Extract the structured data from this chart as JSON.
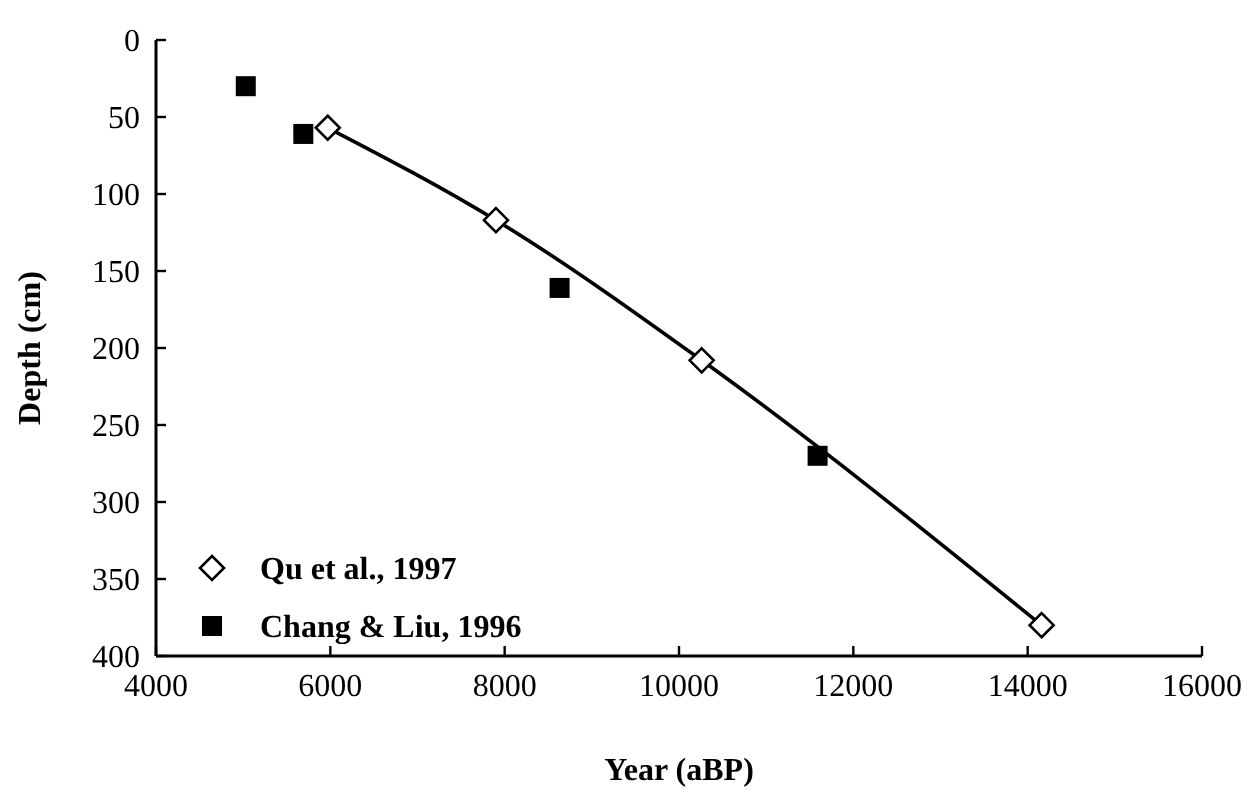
{
  "chart_data": {
    "type": "scatter",
    "xlabel": "Year (aBP)",
    "ylabel": "Depth (cm)",
    "xlim": [
      4000,
      16000
    ],
    "xticks": [
      4000,
      6000,
      8000,
      10000,
      12000,
      14000,
      16000
    ],
    "ylim": [
      400,
      0
    ],
    "yticks": [
      0,
      50,
      100,
      150,
      200,
      250,
      300,
      350,
      400
    ],
    "legend": "bottom left",
    "grid": false,
    "series": [
      {
        "type": "line",
        "color": "#000000",
        "marker": "none",
        "x": [
          5970,
          7900,
          10260,
          14160
        ],
        "values": [
          57,
          117,
          208,
          380
        ]
      },
      {
        "name": "Qu et al., 1997",
        "color": "#000000",
        "marker": "diamond",
        "x": [
          5970,
          7900,
          10260,
          14160
        ],
        "values": [
          57,
          117,
          208,
          380
        ]
      },
      {
        "name": "Chang & Liu, 1996",
        "color": "#000000",
        "marker": "square",
        "x": [
          5030,
          5690,
          8630,
          11590
        ],
        "values": [
          30,
          61,
          161,
          270
        ]
      }
    ]
  }
}
